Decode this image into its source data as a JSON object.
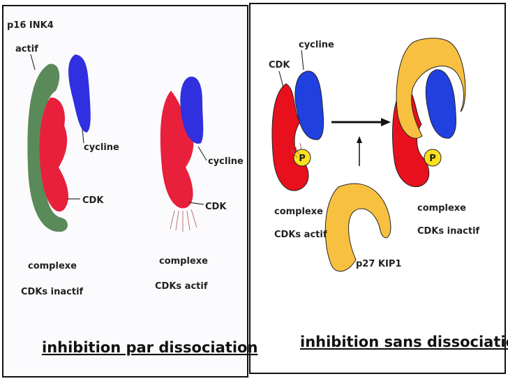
{
  "left_panel": {
    "inhibitor": {
      "name": "p16 INK4",
      "state": "actif"
    },
    "inactive_labels": {
      "cyclin": "cycline",
      "cdk": "CDK",
      "complex_line1": "complexe",
      "complex_line2": "CDKs inactif"
    },
    "active_labels": {
      "cyclin": "cycline",
      "cdk": "CDK",
      "complex_line1": "complexe",
      "complex_line2": "CDKs actif"
    },
    "caption": "inhibition par dissociation"
  },
  "right_panel": {
    "active_labels": {
      "cyclin": "cycline",
      "cdk": "CDK",
      "phosphate": "P",
      "complex_line1": "complexe",
      "complex_line2": "CDKs actif"
    },
    "inhibitor": {
      "name": "p27 KIP1"
    },
    "inactive_labels": {
      "phosphate": "P",
      "complex_line1": "complexe",
      "complex_line2": "CDKs inactif"
    },
    "caption": "inhibition sans dissociation"
  }
}
